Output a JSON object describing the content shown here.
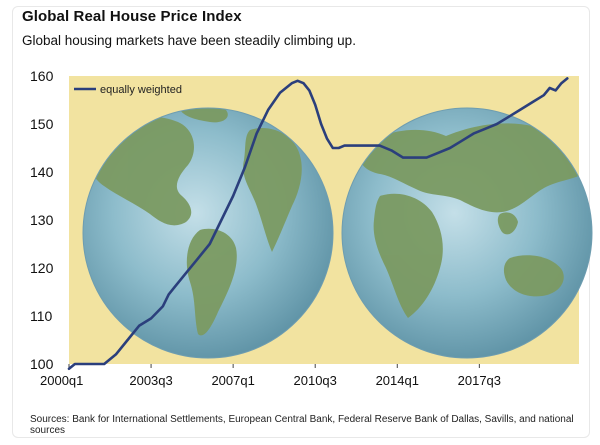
{
  "title": "Global Real House Price Index",
  "subtitle": "Global housing markets have been steadily climbing up.",
  "source": "Sources: Bank for International Settlements, European Central Bank, Federal Reserve Bank of Dallas, Savills, and national sources",
  "colors": {
    "plot_background": "#f2e3a0",
    "line": "#2b3f7c",
    "globe_ocean": "#86b6c7",
    "globe_land": "#7b9a62"
  },
  "chart_data": {
    "type": "line",
    "ylim": [
      100,
      160
    ],
    "y_ticks": [
      100,
      110,
      120,
      130,
      140,
      150,
      160
    ],
    "x_ticks": [
      "2000q1",
      "2003q3",
      "2007q1",
      "2010q3",
      "2014q1",
      "2017q3"
    ],
    "legend": {
      "label": "equally weighted",
      "position": "top-left"
    },
    "series": [
      {
        "name": "equally weighted",
        "points": [
          {
            "x": 0,
            "y": 99
          },
          {
            "x": 1,
            "y": 100
          },
          {
            "x": 4,
            "y": 100
          },
          {
            "x": 6,
            "y": 100
          },
          {
            "x": 8,
            "y": 102
          },
          {
            "x": 10,
            "y": 105
          },
          {
            "x": 12,
            "y": 108
          },
          {
            "x": 14,
            "y": 109.5
          },
          {
            "x": 16,
            "y": 112
          },
          {
            "x": 17,
            "y": 114.5
          },
          {
            "x": 18,
            "y": 116
          },
          {
            "x": 20,
            "y": 119
          },
          {
            "x": 22,
            "y": 122
          },
          {
            "x": 24,
            "y": 125
          },
          {
            "x": 26,
            "y": 130
          },
          {
            "x": 28,
            "y": 135
          },
          {
            "x": 30,
            "y": 141
          },
          {
            "x": 32,
            "y": 148
          },
          {
            "x": 34,
            "y": 153
          },
          {
            "x": 36,
            "y": 156.5
          },
          {
            "x": 38,
            "y": 158.5
          },
          {
            "x": 39,
            "y": 159
          },
          {
            "x": 40,
            "y": 158.5
          },
          {
            "x": 41,
            "y": 157
          },
          {
            "x": 42,
            "y": 154
          },
          {
            "x": 43,
            "y": 150
          },
          {
            "x": 44,
            "y": 147
          },
          {
            "x": 45,
            "y": 145
          },
          {
            "x": 46,
            "y": 145
          },
          {
            "x": 47,
            "y": 145.5
          },
          {
            "x": 49,
            "y": 145.5
          },
          {
            "x": 51,
            "y": 145.5
          },
          {
            "x": 53,
            "y": 145.5
          },
          {
            "x": 55,
            "y": 144.5
          },
          {
            "x": 57,
            "y": 143
          },
          {
            "x": 59,
            "y": 143
          },
          {
            "x": 61,
            "y": 143
          },
          {
            "x": 63,
            "y": 144
          },
          {
            "x": 65,
            "y": 145
          },
          {
            "x": 67,
            "y": 146.5
          },
          {
            "x": 69,
            "y": 148
          },
          {
            "x": 71,
            "y": 149
          },
          {
            "x": 73,
            "y": 150
          },
          {
            "x": 75,
            "y": 151.5
          },
          {
            "x": 77,
            "y": 153
          },
          {
            "x": 79,
            "y": 154.5
          },
          {
            "x": 81,
            "y": 156
          },
          {
            "x": 82,
            "y": 157.5
          },
          {
            "x": 83,
            "y": 157
          },
          {
            "x": 84,
            "y": 158.5
          },
          {
            "x": 85,
            "y": 159.5
          }
        ]
      }
    ]
  }
}
